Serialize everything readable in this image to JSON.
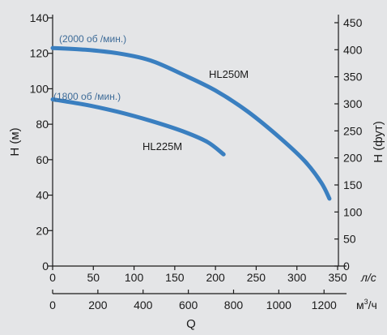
{
  "colors": {
    "background": "#e4e5e7",
    "curve": "#3a7fc0",
    "axis": "#1a1a1a",
    "speed_label": "#3d6b98"
  },
  "chart_data": {
    "type": "line",
    "xlabel": "Q",
    "ylabel_left": "H (м)",
    "ylabel_right": "H (фут)",
    "x_axis_ls": {
      "unit": "л/с",
      "ticks": [
        0,
        50,
        100,
        150,
        200,
        250,
        300,
        350
      ],
      "range": [
        0,
        350
      ]
    },
    "x_axis_m3h": {
      "unit": "м³/ч",
      "unit_base": "м",
      "unit_sup": "3",
      "unit_tail": "/ч",
      "ticks": [
        0,
        200,
        400,
        600,
        800,
        1000,
        1200
      ],
      "range": [
        0,
        1260
      ]
    },
    "y_axis_m": {
      "ticks": [
        0,
        20,
        40,
        60,
        80,
        100,
        120,
        140
      ],
      "range": [
        0,
        140
      ]
    },
    "y_axis_ft": {
      "ticks": [
        0,
        50,
        100,
        150,
        200,
        250,
        300,
        350,
        400,
        450
      ],
      "range": [
        0,
        459
      ]
    },
    "series": [
      {
        "name": "HL250M",
        "speed": "(2000 об /мин.)",
        "x": [
          0,
          40,
          80,
          120,
          160,
          200,
          240,
          280,
          310,
          330,
          340
        ],
        "y": [
          123,
          122,
          120,
          116,
          108,
          99,
          87,
          72,
          59,
          47,
          38
        ]
      },
      {
        "name": "HL225M",
        "speed": "(1800 об /мин.)",
        "x": [
          0,
          40,
          80,
          120,
          160,
          190,
          210
        ],
        "y": [
          94,
          91,
          87,
          82,
          76,
          70,
          63
        ]
      }
    ]
  }
}
